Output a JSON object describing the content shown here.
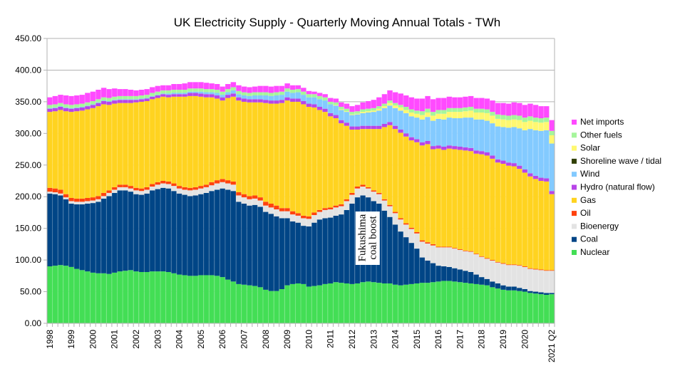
{
  "chart_data": {
    "type": "bar",
    "stacked": true,
    "title": "UK Electricity Supply - Quarterly Moving Annual Totals - TWh",
    "xlabel": "",
    "ylabel": "",
    "ylim": [
      0,
      450
    ],
    "yticks": [
      "0.00",
      "50.00",
      "100.00",
      "150.00",
      "200.00",
      "250.00",
      "300.00",
      "350.00",
      "400.00",
      "450.00"
    ],
    "ytick_values": [
      0,
      50,
      100,
      150,
      200,
      250,
      300,
      350,
      400,
      450
    ],
    "grid": "horizontal",
    "legend_position": "right",
    "xtick_labels": [
      {
        "label": "1998",
        "index": 0
      },
      {
        "label": "1999",
        "index": 4
      },
      {
        "label": "2000",
        "index": 8
      },
      {
        "label": "2001",
        "index": 12
      },
      {
        "label": "2002",
        "index": 16
      },
      {
        "label": "2003",
        "index": 20
      },
      {
        "label": "2004",
        "index": 24
      },
      {
        "label": "2005",
        "index": 28
      },
      {
        "label": "2006",
        "index": 32
      },
      {
        "label": "2007",
        "index": 36
      },
      {
        "label": "2008",
        "index": 40
      },
      {
        "label": "2009",
        "index": 44
      },
      {
        "label": "2010",
        "index": 48
      },
      {
        "label": "2011",
        "index": 52
      },
      {
        "label": "2012",
        "index": 56
      },
      {
        "label": "2013",
        "index": 60
      },
      {
        "label": "2014",
        "index": 64
      },
      {
        "label": "2015",
        "index": 68
      },
      {
        "label": "2016",
        "index": 72
      },
      {
        "label": "2017",
        "index": 76
      },
      {
        "label": "2018",
        "index": 80
      },
      {
        "label": "2019",
        "index": 84
      },
      {
        "label": "2020",
        "index": 88
      },
      {
        "label": "2021 Q2",
        "index": 93
      }
    ],
    "annotation": {
      "lines": [
        "Fukushima",
        "coal boost"
      ],
      "at_index": 57
    },
    "series_stack_order": [
      "Nuclear",
      "Coal",
      "Bioenergy",
      "Oil",
      "Gas",
      "Hydro (natural flow)",
      "Wind",
      "Shoreline wave / tidal",
      "Solar",
      "Other fuels",
      "Net imports"
    ],
    "legend_order": [
      "Net imports",
      "Other fuels",
      "Solar",
      "Shoreline wave / tidal",
      "Wind",
      "Hydro (natural flow)",
      "Gas",
      "Oil",
      "Bioenergy",
      "Coal",
      "Nuclear"
    ],
    "colors": {
      "Nuclear": "#43de55",
      "Coal": "#004586",
      "Bioenergy": "#e3e3e3",
      "Oil": "#ff420e",
      "Gas": "#ffd320",
      "Hydro (natural flow)": "#b845e8",
      "Wind": "#83caff",
      "Shoreline wave / tidal": "#314004",
      "Solar": "#fff870",
      "Other fuels": "#a6f59c",
      "Net imports": "#ff4aff"
    },
    "series": [
      {
        "name": "Nuclear",
        "values": [
          90,
          91,
          92,
          91,
          89,
          86,
          84,
          82,
          80,
          79,
          79,
          78,
          80,
          82,
          83,
          84,
          82,
          81,
          81,
          82,
          82,
          82,
          81,
          79,
          77,
          76,
          75,
          75,
          76,
          76,
          76,
          75,
          73,
          69,
          66,
          62,
          61,
          60,
          59,
          57,
          53,
          51,
          51,
          54,
          60,
          62,
          63,
          62,
          58,
          59,
          60,
          62,
          63,
          65,
          64,
          63,
          62,
          63,
          65,
          66,
          65,
          64,
          63,
          63,
          61,
          60,
          61,
          62,
          63,
          64,
          64,
          65,
          66,
          67,
          67,
          66,
          65,
          64,
          63,
          62,
          61,
          60,
          57,
          55,
          53,
          52,
          52,
          51,
          50,
          48,
          47,
          46,
          45,
          46
        ]
      },
      {
        "name": "Coal",
        "values": [
          115,
          113,
          110,
          105,
          100,
          102,
          104,
          107,
          110,
          113,
          118,
          123,
          126,
          128,
          127,
          124,
          122,
          122,
          124,
          128,
          130,
          132,
          132,
          130,
          128,
          127,
          126,
          127,
          128,
          130,
          133,
          136,
          140,
          142,
          143,
          130,
          128,
          126,
          128,
          127,
          123,
          122,
          118,
          112,
          106,
          99,
          96,
          92,
          95,
          100,
          104,
          104,
          104,
          105,
          108,
          116,
          127,
          136,
          137,
          133,
          128,
          125,
          115,
          105,
          95,
          85,
          75,
          65,
          55,
          40,
          35,
          30,
          25,
          23,
          22,
          21,
          20,
          19,
          18,
          15,
          12,
          10,
          9,
          8,
          7,
          6,
          6,
          5,
          4,
          3,
          3,
          3,
          3,
          2
        ]
      },
      {
        "name": "Bioenergy",
        "values": [
          3,
          3,
          3,
          3,
          4,
          4,
          4,
          4,
          4,
          4,
          4,
          5,
          5,
          5,
          5,
          5,
          6,
          6,
          6,
          6,
          7,
          7,
          7,
          8,
          8,
          8,
          9,
          9,
          9,
          9,
          9,
          10,
          10,
          10,
          10,
          10,
          10,
          10,
          10,
          10,
          10,
          10,
          11,
          11,
          11,
          11,
          11,
          12,
          12,
          12,
          12,
          13,
          13,
          13,
          13,
          14,
          14,
          14,
          14,
          14,
          15,
          15,
          16,
          17,
          18,
          19,
          20,
          22,
          24,
          25,
          27,
          28,
          29,
          30,
          31,
          31,
          31,
          31,
          32,
          32,
          32,
          32,
          33,
          33,
          34,
          34,
          34,
          35,
          35,
          35,
          35,
          35,
          35,
          35
        ]
      },
      {
        "name": "Oil",
        "values": [
          6,
          6,
          6,
          5,
          5,
          5,
          5,
          5,
          5,
          5,
          5,
          4,
          4,
          4,
          4,
          4,
          4,
          4,
          4,
          4,
          4,
          4,
          4,
          4,
          4,
          4,
          4,
          4,
          4,
          4,
          5,
          5,
          5,
          5,
          5,
          5,
          5,
          5,
          5,
          5,
          6,
          6,
          6,
          5,
          5,
          5,
          4,
          4,
          4,
          4,
          3,
          3,
          3,
          3,
          3,
          3,
          3,
          3,
          3,
          2,
          2,
          2,
          2,
          2,
          2,
          2,
          2,
          2,
          2,
          2,
          2,
          2,
          1,
          1,
          1,
          1,
          1,
          1,
          1,
          1,
          1,
          1,
          1,
          1,
          1,
          1,
          1,
          1,
          1,
          1,
          1,
          1,
          1,
          1
        ]
      },
      {
        "name": "Gas",
        "values": [
          120,
          122,
          126,
          131,
          136,
          138,
          139,
          140,
          141,
          142,
          140,
          135,
          132,
          129,
          129,
          131,
          135,
          137,
          136,
          134,
          133,
          133,
          133,
          137,
          141,
          143,
          145,
          144,
          141,
          138,
          134,
          129,
          124,
          130,
          134,
          145,
          146,
          148,
          147,
          150,
          156,
          158,
          161,
          166,
          170,
          173,
          176,
          176,
          173,
          166,
          158,
          152,
          144,
          138,
          128,
          116,
          100,
          90,
          88,
          92,
          97,
          101,
          114,
          126,
          131,
          135,
          137,
          138,
          142,
          150,
          155,
          150,
          155,
          153,
          155,
          156,
          157,
          158,
          158,
          158,
          161,
          162,
          160,
          157,
          157,
          156,
          155,
          152,
          148,
          145,
          142,
          140,
          140,
          120
        ]
      },
      {
        "name": "Hydro (natural flow)",
        "values": [
          5,
          5,
          5,
          5,
          5,
          5,
          5,
          5,
          5,
          5,
          5,
          5,
          5,
          5,
          5,
          5,
          4,
          4,
          4,
          4,
          4,
          4,
          4,
          4,
          4,
          4,
          5,
          5,
          5,
          5,
          5,
          5,
          5,
          5,
          5,
          5,
          5,
          5,
          5,
          5,
          5,
          5,
          5,
          5,
          5,
          5,
          5,
          5,
          5,
          5,
          5,
          5,
          5,
          5,
          5,
          5,
          5,
          5,
          5,
          5,
          5,
          5,
          5,
          5,
          5,
          5,
          5,
          5,
          5,
          5,
          5,
          5,
          5,
          5,
          5,
          5,
          5,
          5,
          5,
          5,
          5,
          5,
          5,
          5,
          5,
          5,
          5,
          5,
          5,
          5,
          5,
          5,
          5,
          5
        ]
      },
      {
        "name": "Wind",
        "values": [
          1,
          1,
          1,
          1,
          1,
          1,
          1,
          1,
          1,
          1,
          1,
          1,
          1,
          1,
          1,
          1,
          1,
          1,
          1,
          1,
          1,
          1,
          2,
          2,
          2,
          2,
          2,
          2,
          3,
          3,
          3,
          4,
          4,
          4,
          5,
          5,
          5,
          5,
          6,
          6,
          7,
          7,
          8,
          8,
          9,
          9,
          10,
          10,
          10,
          11,
          12,
          13,
          14,
          15,
          16,
          17,
          18,
          19,
          20,
          21,
          22,
          24,
          25,
          26,
          28,
          30,
          32,
          33,
          34,
          36,
          38,
          40,
          42,
          43,
          44,
          44,
          45,
          47,
          48,
          49,
          50,
          50,
          51,
          52,
          53,
          55,
          57,
          59,
          62,
          70,
          72,
          74,
          76,
          75
        ]
      },
      {
        "name": "Shoreline wave / tidal",
        "values": [
          0,
          0,
          0,
          0,
          0,
          0,
          0,
          0,
          0,
          0,
          0,
          0,
          0,
          0,
          0,
          0,
          0,
          0,
          0,
          0,
          0,
          0,
          0,
          0,
          0,
          0,
          0,
          0,
          0,
          0,
          0,
          0,
          0,
          0,
          0,
          0,
          0,
          0,
          0,
          0,
          0,
          0,
          0,
          0,
          0,
          0,
          0,
          0,
          0,
          0,
          0,
          0,
          0,
          0,
          0,
          0,
          0,
          0,
          0,
          0,
          0,
          0,
          0,
          0,
          0,
          0,
          0,
          0,
          0,
          0,
          0,
          0,
          0,
          0,
          0,
          0,
          0,
          0,
          0,
          0,
          0,
          0,
          0,
          0,
          0,
          0,
          0,
          0,
          0,
          0,
          0,
          0,
          0,
          0
        ]
      },
      {
        "name": "Solar",
        "values": [
          0,
          0,
          0,
          0,
          0,
          0,
          0,
          0,
          0,
          0,
          0,
          0,
          0,
          0,
          0,
          0,
          0,
          0,
          0,
          0,
          0,
          0,
          0,
          0,
          0,
          0,
          0,
          0,
          0,
          0,
          0,
          0,
          0,
          0,
          0,
          0,
          0,
          0,
          0,
          0,
          0,
          0,
          0,
          0,
          0,
          0,
          0,
          0,
          0,
          0,
          0,
          0,
          0,
          1,
          1,
          1,
          1,
          1,
          2,
          2,
          2,
          3,
          3,
          4,
          4,
          5,
          5,
          6,
          6,
          7,
          7,
          8,
          8,
          9,
          9,
          10,
          10,
          10,
          11,
          11,
          11,
          12,
          12,
          12,
          12,
          12,
          12,
          13,
          13,
          13,
          13,
          13,
          13,
          13
        ]
      },
      {
        "name": "Other fuels",
        "values": [
          5,
          5,
          5,
          5,
          5,
          5,
          5,
          5,
          5,
          5,
          5,
          5,
          5,
          5,
          5,
          5,
          5,
          5,
          5,
          5,
          5,
          5,
          5,
          5,
          5,
          5,
          5,
          5,
          5,
          5,
          5,
          5,
          5,
          5,
          5,
          5,
          5,
          5,
          5,
          5,
          5,
          5,
          5,
          5,
          5,
          5,
          5,
          5,
          5,
          5,
          5,
          5,
          4,
          4,
          4,
          4,
          4,
          4,
          4,
          4,
          4,
          4,
          4,
          4,
          4,
          4,
          5,
          5,
          5,
          6,
          6,
          6,
          6,
          6,
          6,
          6,
          6,
          6,
          6,
          6,
          6,
          6,
          6,
          7,
          7,
          7,
          7,
          7,
          7,
          7,
          7,
          7,
          7,
          7
        ]
      },
      {
        "name": "Net imports",
        "values": [
          12,
          13,
          13,
          14,
          14,
          14,
          14,
          15,
          15,
          15,
          15,
          14,
          13,
          11,
          11,
          10,
          9,
          9,
          9,
          9,
          9,
          8,
          8,
          9,
          9,
          10,
          10,
          10,
          10,
          10,
          9,
          9,
          8,
          8,
          8,
          9,
          9,
          9,
          9,
          10,
          10,
          10,
          10,
          9,
          8,
          7,
          6,
          6,
          5,
          4,
          5,
          5,
          6,
          6,
          7,
          8,
          9,
          10,
          11,
          12,
          13,
          14,
          15,
          16,
          17,
          18,
          18,
          19,
          19,
          20,
          20,
          20,
          19,
          19,
          18,
          17,
          17,
          17,
          17,
          17,
          17,
          17,
          18,
          18,
          19,
          19,
          20,
          20,
          20,
          20,
          20,
          19,
          18,
          17
        ]
      }
    ]
  }
}
